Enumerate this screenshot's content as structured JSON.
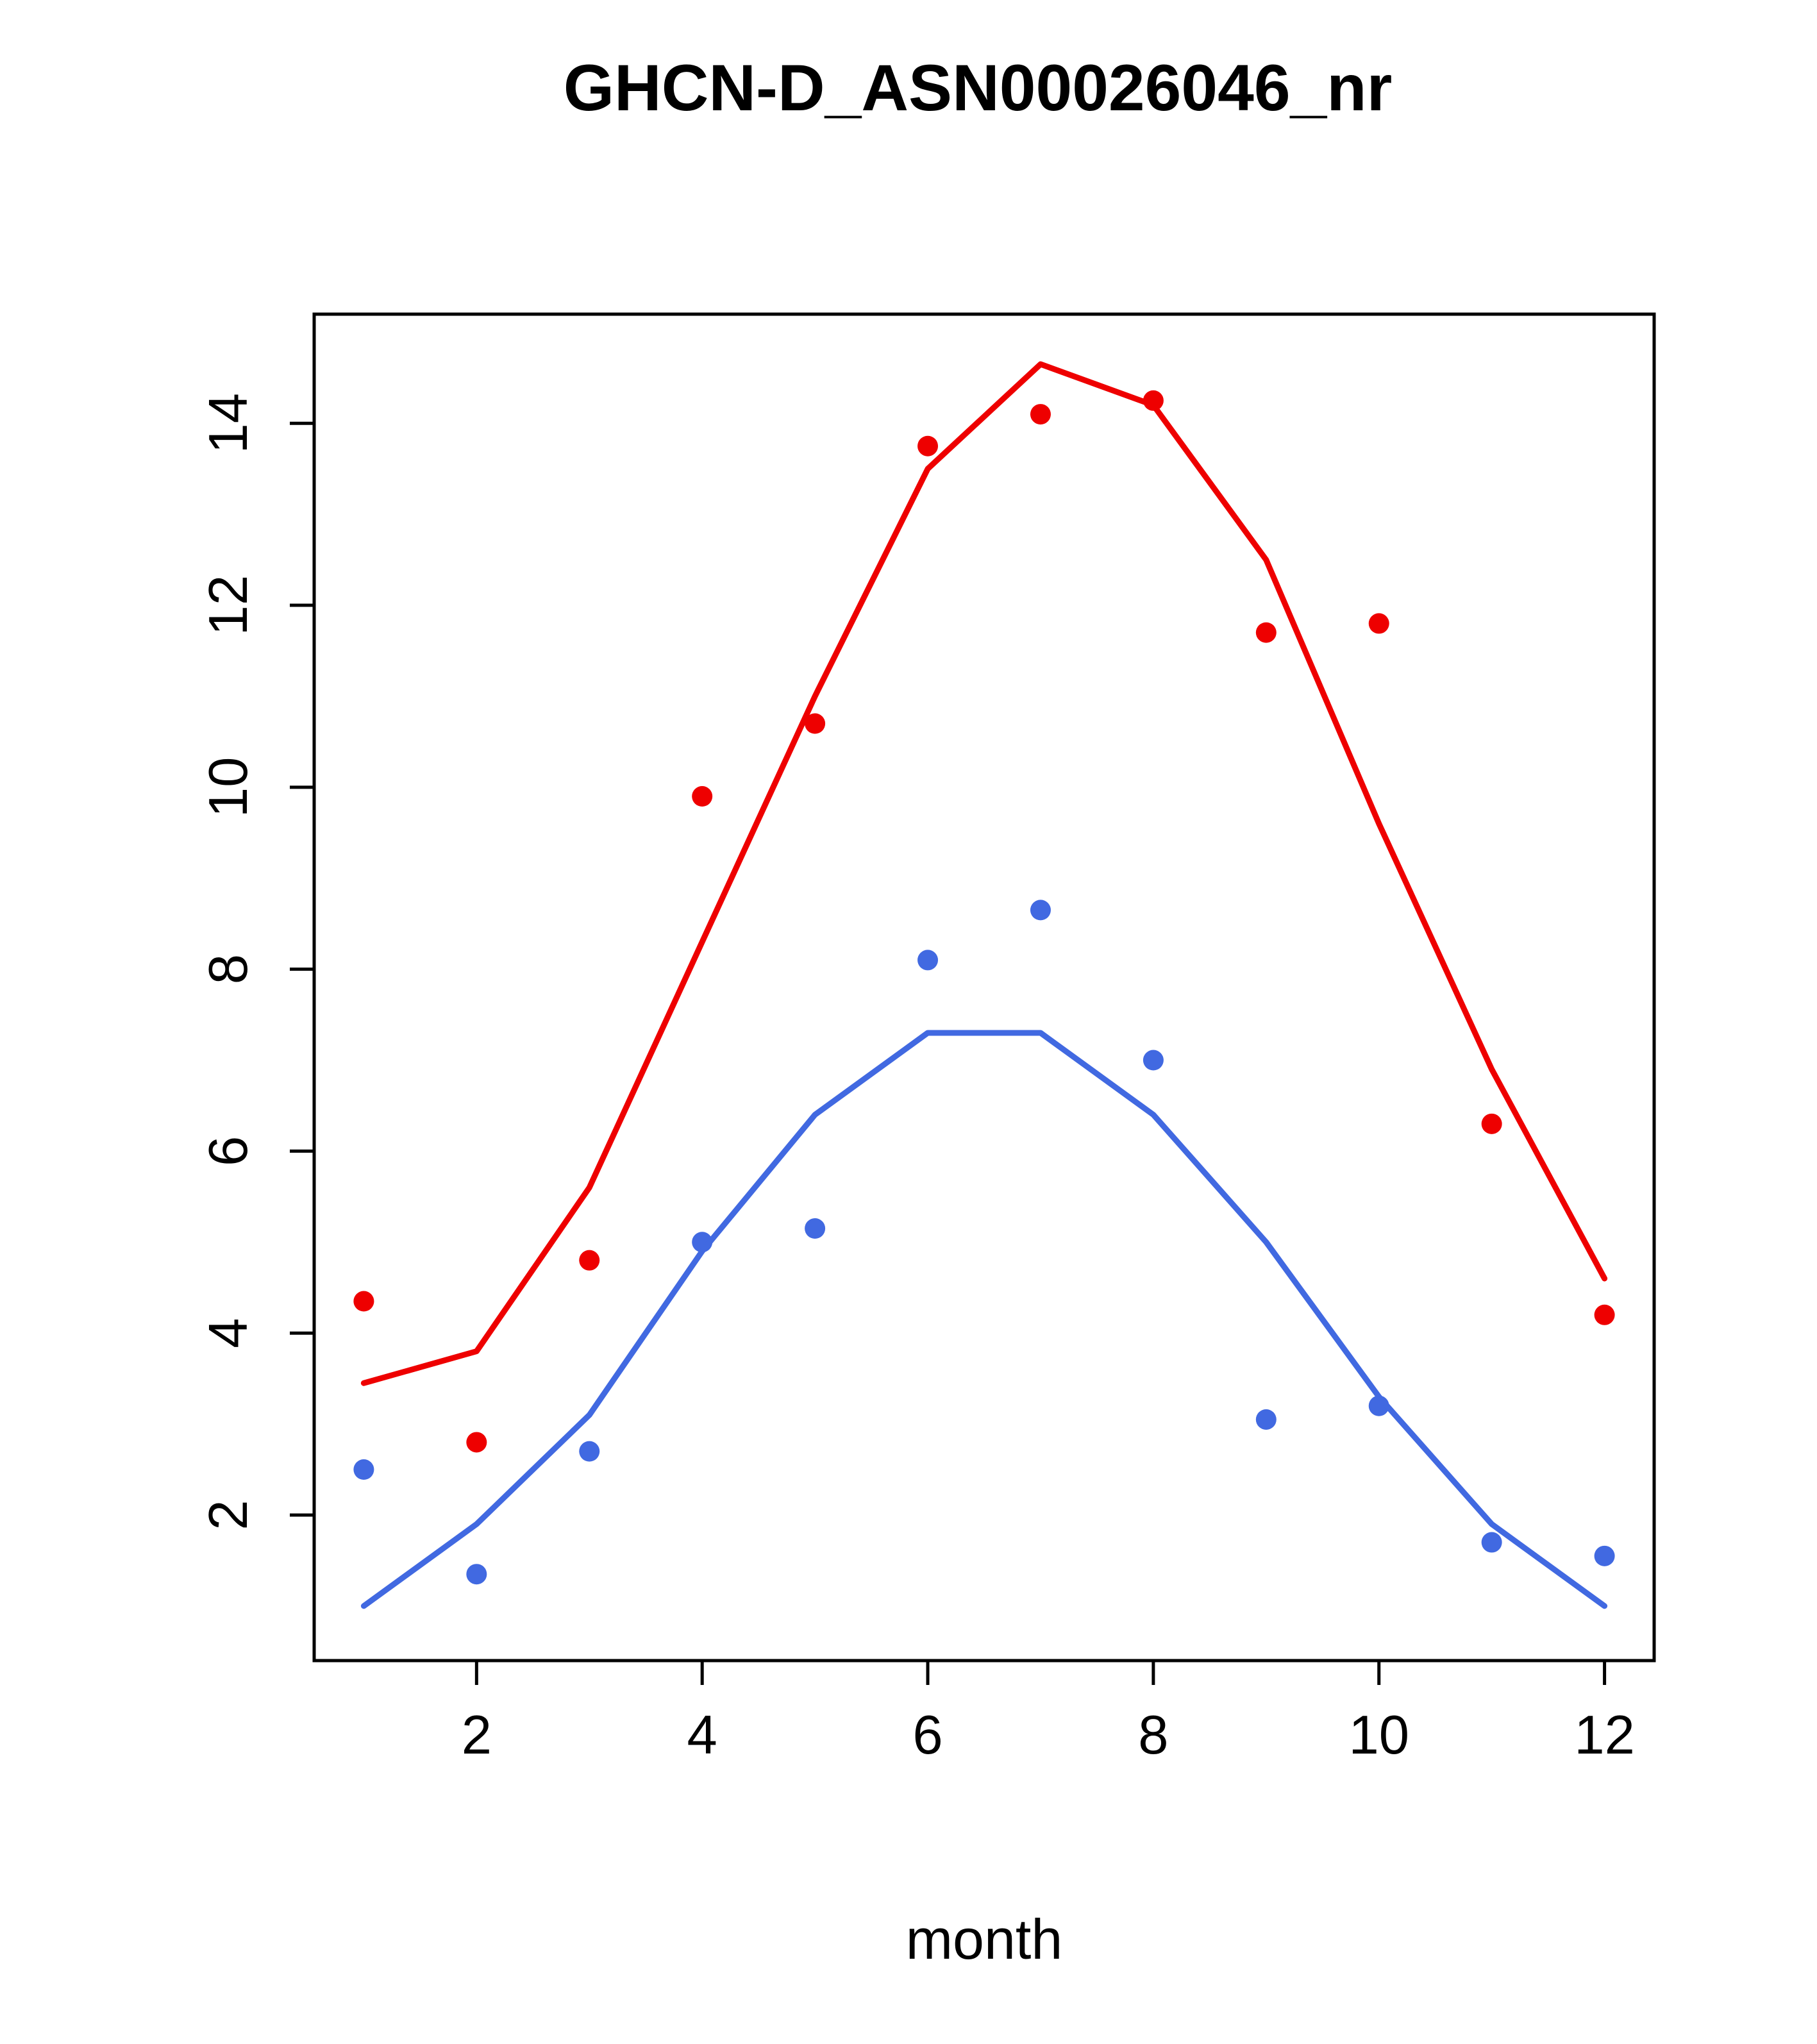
{
  "figure": {
    "background": "#ffffff"
  },
  "chart_data": {
    "type": "scatter",
    "title": "GHCN-D_ASN00026046_nr",
    "xlabel": "month",
    "ylabel": "",
    "x": [
      1,
      2,
      3,
      4,
      5,
      6,
      7,
      8,
      9,
      10,
      11,
      12
    ],
    "x_ticks": [
      2,
      4,
      6,
      8,
      10,
      12
    ],
    "y_ticks": [
      2,
      4,
      6,
      8,
      10,
      12,
      14
    ],
    "xlim": [
      0.56,
      12.44
    ],
    "ylim": [
      0.4,
      15.2
    ],
    "grid": false,
    "legend": "none",
    "colors": {
      "red_series": "#ee0000",
      "blue_series": "#4169e1",
      "axis": "#000000"
    },
    "series": [
      {
        "name": "red-observations",
        "style": "points",
        "color": "#ee0000",
        "values": [
          4.35,
          2.8,
          4.8,
          9.9,
          10.7,
          13.75,
          14.1,
          14.25,
          11.7,
          11.8,
          6.3,
          4.2
        ]
      },
      {
        "name": "red-fit-line",
        "style": "line",
        "color": "#ee0000",
        "values": [
          3.45,
          3.8,
          5.6,
          8.3,
          11.0,
          13.5,
          14.65,
          14.2,
          12.5,
          9.6,
          6.9,
          4.6
        ]
      },
      {
        "name": "blue-observations",
        "style": "points",
        "color": "#4169e1",
        "values": [
          2.5,
          1.35,
          2.7,
          5.0,
          5.15,
          8.1,
          8.65,
          7.0,
          3.05,
          3.2,
          1.7,
          1.55
        ]
      },
      {
        "name": "blue-fit-line",
        "style": "line",
        "color": "#4169e1",
        "values": [
          1.0,
          1.9,
          3.1,
          4.9,
          6.4,
          7.3,
          7.3,
          6.4,
          5.0,
          3.3,
          1.9,
          1.0
        ]
      }
    ]
  }
}
